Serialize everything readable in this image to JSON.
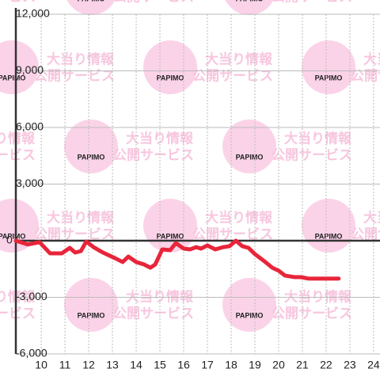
{
  "watermark": {
    "logo": "PAPIMO",
    "line1": "大当り情報",
    "line2": "公開サービス"
  },
  "chart_data": {
    "type": "line",
    "x": [
      8.93,
      9.43,
      9.93,
      10.37,
      10.87,
      11.2,
      11.43,
      11.67,
      11.9,
      12.2,
      12.6,
      13.1,
      13.43,
      13.67,
      14.0,
      14.33,
      14.6,
      14.8,
      15.1,
      15.43,
      15.67,
      16.0,
      16.27,
      16.53,
      16.73,
      17.0,
      17.33,
      17.67,
      17.93,
      18.2,
      18.47,
      18.73,
      19.0,
      19.4,
      19.73,
      20.0,
      20.27,
      20.67,
      20.93,
      21.27,
      21.93,
      22.53
    ],
    "series": [
      {
        "color": "#e8253a",
        "values": [
          0,
          -200,
          -80,
          -670,
          -670,
          -380,
          -630,
          -550,
          -40,
          -340,
          -630,
          -920,
          -1130,
          -840,
          -1130,
          -1260,
          -1430,
          -1260,
          -460,
          -500,
          -130,
          -420,
          -460,
          -340,
          -420,
          -250,
          -460,
          -340,
          -290,
          0,
          -290,
          -380,
          -710,
          -1090,
          -1430,
          -1590,
          -1850,
          -1930,
          -1930,
          -2010,
          -2010,
          -2010
        ]
      }
    ],
    "xlim": [
      8.93,
      24.27
    ],
    "xticks": [
      10,
      11,
      12,
      13,
      14,
      15,
      16,
      17,
      18,
      19,
      20,
      21,
      22,
      23,
      24
    ],
    "ylim": [
      -6000,
      12000
    ],
    "yticks": [
      {
        "value": -6000,
        "label": "-6,000"
      },
      {
        "value": -3000,
        "label": "-3,000"
      },
      0,
      {
        "value": 3000,
        "label": "3,000"
      },
      {
        "value": 6000,
        "label": "6,000"
      },
      {
        "value": 9000,
        "label": "9,000"
      },
      {
        "value": 12000,
        "label": "12,000"
      }
    ],
    "grid": true
  }
}
